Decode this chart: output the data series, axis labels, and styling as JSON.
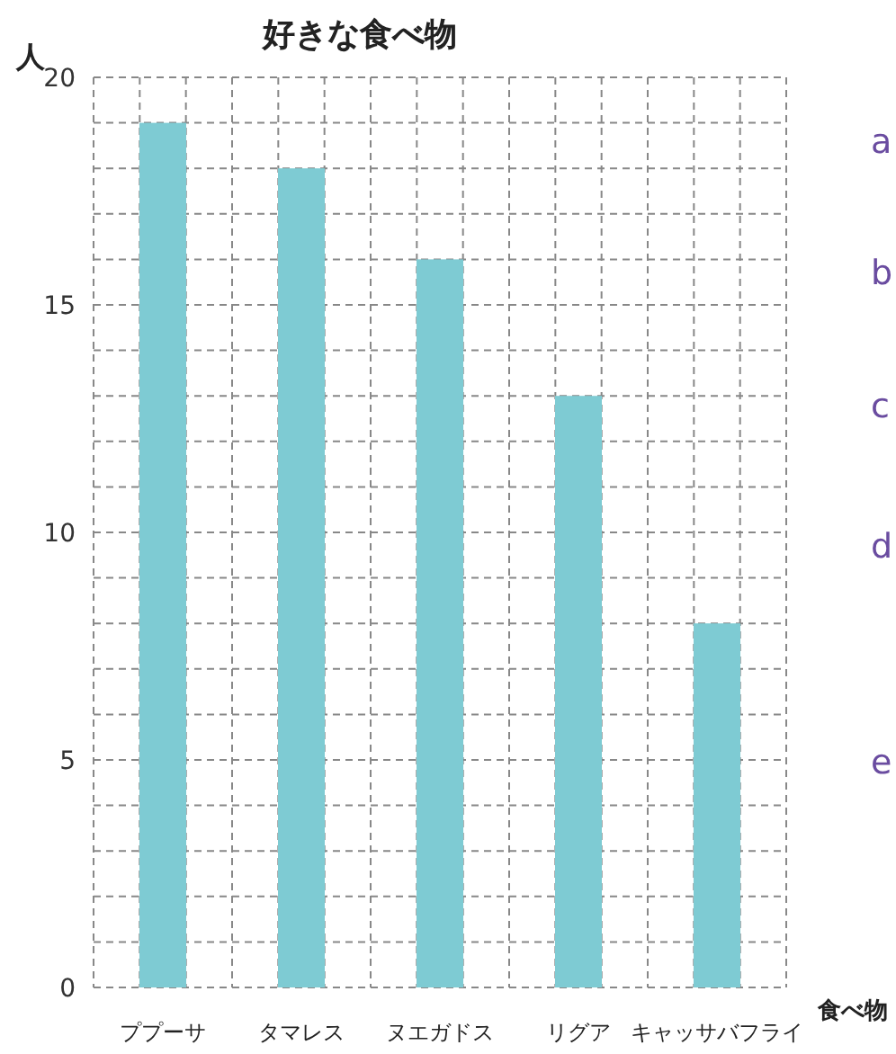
{
  "chart_data": {
    "type": "bar",
    "title": "好きな食べ物",
    "ylabel": "人",
    "xlabel": "食べ物",
    "categories": [
      "ププーサ",
      "タマレス",
      "ヌエガドス",
      "リグア",
      "キャッサバフライ"
    ],
    "values": [
      19,
      18,
      16,
      13,
      8
    ],
    "color": "#7ecbd3",
    "ylim": [
      0,
      20
    ],
    "yticks": [
      0,
      5,
      10,
      15,
      20
    ],
    "grid": true,
    "annotations": [
      "a",
      "b",
      "c",
      "d",
      "e"
    ]
  }
}
